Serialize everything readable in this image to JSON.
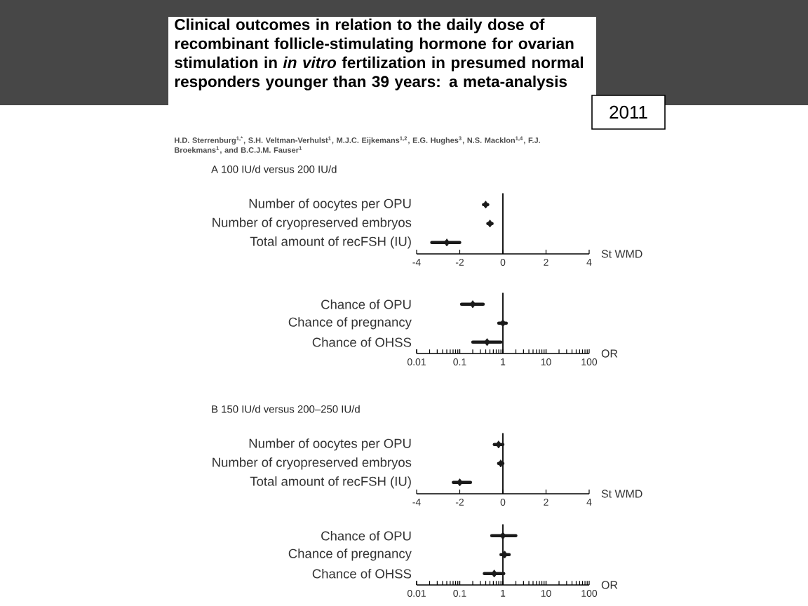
{
  "chart_data": [
    {
      "type": "scatter",
      "orientation": "horizontal",
      "marker": "diamond",
      "color": "#1a1a1a",
      "title": "A 100 IU/d versus 200 IU/d",
      "annotations": [
        "Clinical outcomes in relation to the daily dose of recombinant follicle-stimulating hormone for ovarian stimulation in *in vitro* fertilization in presumed normal responders younger than 39 years: a meta-analysis",
        "H.D. Sterrenburg$^{1,*}$, S.H. Veltman-Verhulst$^{1}$, M.J.C. Eijkemans$^{1,2}$, E.G. Hughes$^{3}$, N.S. Macklon$^{1,4}$, F.J. Broekmans$^{1}$, and B.C.J.M. Fauser$^{1}$",
        "2011"
      ],
      "categories": [
        "Number of oocytes per OPU",
        "Number of cryopreserved embryos",
        "Total amount of recFSH (IU)"
      ],
      "values": [
        -0.8,
        -0.6,
        -2.6
      ],
      "errors": [
        [
          -0.9,
          -0.7
        ],
        [
          -0.7,
          -0.5
        ],
        [
          -3.3,
          -2.0
        ]
      ],
      "xlim": [
        -4,
        4
      ],
      "xticks": [
        -4,
        -2,
        0,
        2,
        4
      ],
      "xlabel": "St WMD",
      "ref_lines": [
        {
          "axis": "x",
          "value": 0
        }
      ]
    },
    {
      "type": "scatter",
      "orientation": "horizontal",
      "marker": "diamond",
      "color": "#1a1a1a",
      "log": "x",
      "categories": [
        "Chance of OPU",
        "Chance of pregnancy",
        "Chance of OHSS"
      ],
      "values": [
        0.2,
        1.0,
        0.43
      ],
      "errors": [
        [
          0.11,
          0.35
        ],
        [
          0.8,
          1.2
        ],
        [
          0.2,
          0.9
        ]
      ],
      "xlim": [
        0.01,
        100
      ],
      "xticks": [
        0.01,
        0.1,
        1,
        10,
        100
      ],
      "xlabel": "OR",
      "ref_lines": [
        {
          "axis": "x",
          "value": 1
        }
      ]
    },
    {
      "type": "scatter",
      "orientation": "horizontal",
      "marker": "diamond",
      "color": "#1a1a1a",
      "title": "B 150 IU/d versus 200–250 IU/d",
      "categories": [
        "Number of oocytes per OPU",
        "Number of cryopreserved embryos",
        "Total amount of recFSH (IU)"
      ],
      "values": [
        -0.2,
        -0.1,
        -2.0
      ],
      "errors": [
        [
          -0.4,
          0.0
        ],
        [
          -0.2,
          0.0
        ],
        [
          -2.3,
          -1.5
        ]
      ],
      "xlim": [
        -4,
        4
      ],
      "xticks": [
        -4,
        -2,
        0,
        2,
        4
      ],
      "xlabel": "St WMD",
      "ref_lines": [
        {
          "axis": "x",
          "value": 0
        }
      ]
    },
    {
      "type": "scatter",
      "orientation": "horizontal",
      "marker": "diamond",
      "color": "#1a1a1a",
      "log": "x",
      "categories": [
        "Chance of OPU",
        "Chance of pregnancy",
        "Chance of OHSS"
      ],
      "values": [
        1.0,
        1.1,
        0.63
      ],
      "errors": [
        [
          0.55,
          2.0
        ],
        [
          0.9,
          1.4
        ],
        [
          0.37,
          1.05
        ]
      ],
      "xlim": [
        0.01,
        100
      ],
      "xticks": [
        0.01,
        0.1,
        1,
        10,
        100
      ],
      "xlabel": "OR",
      "ref_lines": [
        {
          "axis": "x",
          "value": 1
        }
      ]
    }
  ]
}
